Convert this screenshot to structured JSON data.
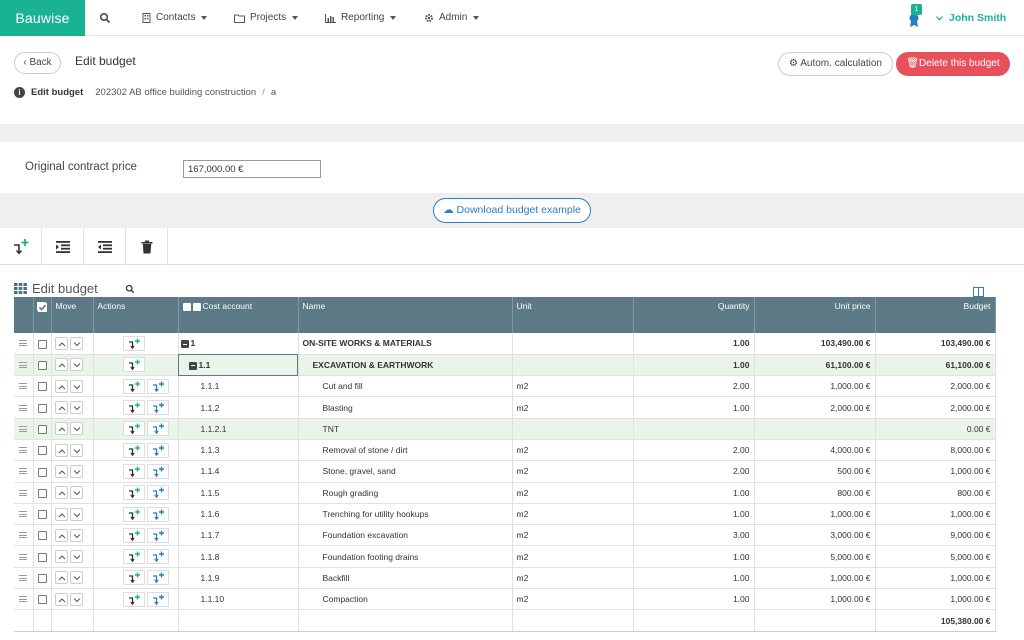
{
  "nav": {
    "brand": "Bauwise",
    "menus": [
      {
        "label": "Contacts",
        "icon": "building-icon"
      },
      {
        "label": "Projects",
        "icon": "folder-icon"
      },
      {
        "label": "Reporting",
        "icon": "bar-chart-icon"
      },
      {
        "label": "Admin",
        "icon": "gear-icon"
      }
    ],
    "notification_count": "1",
    "user_name": "John Smith"
  },
  "header": {
    "back_label": "Back",
    "title": "Edit budget",
    "autom_label": "Autom. calculation",
    "delete_label": "Delete this budget"
  },
  "breadcrumb": {
    "current": "Edit budget",
    "project": "202302 AB office building construction",
    "separator": "/",
    "sub": "a"
  },
  "contract": {
    "label": "Original contract price",
    "value": "167,000.00 €"
  },
  "download_label": "Download budget example",
  "grid": {
    "title": "Edit budget",
    "columns": {
      "move": "Move",
      "actions": "Actions",
      "cost_account": "Cost account",
      "name": "Name",
      "unit": "Unit",
      "quantity": "Quantity",
      "unit_price": "Unit price",
      "budget": "Budget"
    },
    "rows": [
      {
        "level": 0,
        "account": "1",
        "name": "ON-SITE WORKS & MATERIALS",
        "unit": "",
        "quantity": "1.00",
        "unit_price": "103,490.00 €",
        "budget": "103,490.00 €"
      },
      {
        "level": 1,
        "account": "1.1",
        "name": "EXCAVATION & EARTHWORK",
        "unit": "",
        "quantity": "1.00",
        "unit_price": "61,100.00 €",
        "budget": "61,100.00 €"
      },
      {
        "level": 2,
        "account": "1.1.1",
        "name": "Cut and fill",
        "unit": "m2",
        "quantity": "2.00",
        "unit_price": "1,000.00 €",
        "budget": "2,000.00 €"
      },
      {
        "level": 2,
        "account": "1.1.2",
        "name": "Blasting",
        "unit": "m2",
        "quantity": "1.00",
        "unit_price": "2,000.00 €",
        "budget": "2,000.00 €"
      },
      {
        "level": 3,
        "account": "1.1.2.1",
        "name": "TNT",
        "unit": "",
        "quantity": "",
        "unit_price": "",
        "budget": "0.00 €"
      },
      {
        "level": 2,
        "account": "1.1.3",
        "name": "Removal of stone / dirt",
        "unit": "m2",
        "quantity": "2.00",
        "unit_price": "4,000.00 €",
        "budget": "8,000.00 €"
      },
      {
        "level": 2,
        "account": "1.1.4",
        "name": "Stone, gravel, sand",
        "unit": "m2",
        "quantity": "2.00",
        "unit_price": "500.00 €",
        "budget": "1,000.00 €"
      },
      {
        "level": 2,
        "account": "1.1.5",
        "name": "Rough grading",
        "unit": "m2",
        "quantity": "1.00",
        "unit_price": "800.00 €",
        "budget": "800.00 €"
      },
      {
        "level": 2,
        "account": "1.1.6",
        "name": "Trenching for utility hookups",
        "unit": "m2",
        "quantity": "1.00",
        "unit_price": "1,000.00 €",
        "budget": "1,000.00 €"
      },
      {
        "level": 2,
        "account": "1.1.7",
        "name": "Foundation excavation",
        "unit": "m2",
        "quantity": "3.00",
        "unit_price": "3,000.00 €",
        "budget": "9,000.00 €"
      },
      {
        "level": 2,
        "account": "1.1.8",
        "name": "Foundation footing drains",
        "unit": "m2",
        "quantity": "1.00",
        "unit_price": "5,000.00 €",
        "budget": "5,000.00 €"
      },
      {
        "level": 2,
        "account": "1.1.9",
        "name": "Backfill",
        "unit": "m2",
        "quantity": "1.00",
        "unit_price": "1,000.00 €",
        "budget": "1,000.00 €"
      },
      {
        "level": 2,
        "account": "1.1.10",
        "name": "Compaction",
        "unit": "m2",
        "quantity": "1.00",
        "unit_price": "1,000.00 €",
        "budget": "1,000.00 €"
      }
    ],
    "total": "105,380.00 €"
  },
  "colors": {
    "brand": "#19b394",
    "danger": "#e8505b",
    "header": "#5c7986",
    "link": "#2a7fc1"
  }
}
